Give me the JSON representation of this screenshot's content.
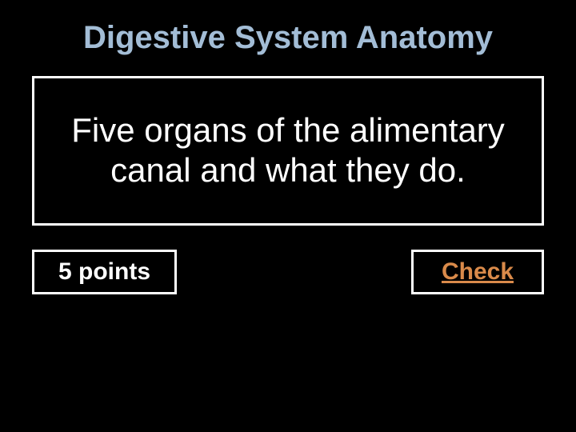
{
  "title": {
    "text": "Digestive System Anatomy",
    "color": "#a3bdd6",
    "fontsize": 40
  },
  "question": {
    "text": "Five organs of the alimentary canal and what they do.",
    "color": "#ffffff",
    "fontsize": 42,
    "border_color": "#ffffff"
  },
  "points": {
    "label": "5 points",
    "color": "#ffffff",
    "border_color": "#ffffff"
  },
  "check": {
    "label": "Check",
    "color": "#d98a4a",
    "border_color": "#ffffff"
  },
  "background_color": "#000000"
}
